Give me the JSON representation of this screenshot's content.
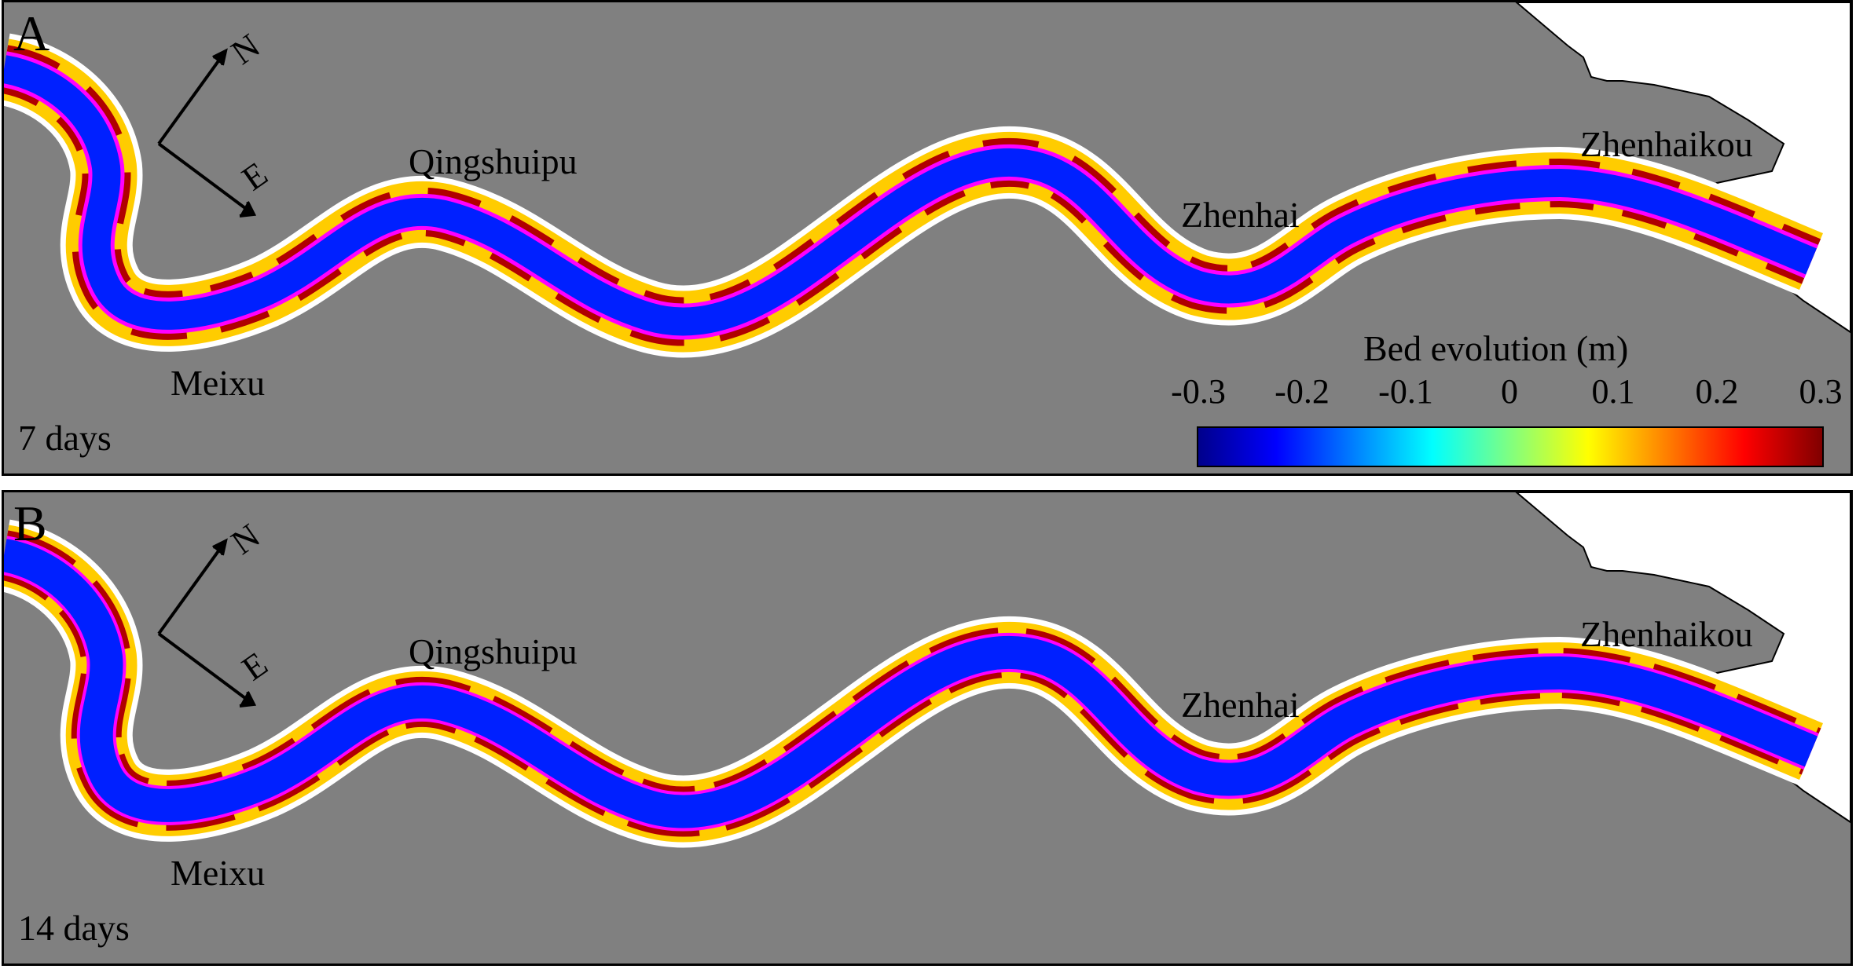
{
  "colors": {
    "land": "#808080",
    "water": "#ffffff",
    "erosion": "#0020ff",
    "deposition": "#8b0000",
    "contour": "#ff00ff"
  },
  "panels": [
    {
      "letter": "A",
      "time_label": "7 days",
      "places": {
        "meixu": "Meixu",
        "qingshuipu": "Qingshuipu",
        "zhenhai": "Zhenhai",
        "zhenhaikou": "Zhenhaikou"
      },
      "north_arrow": {
        "north": "N",
        "east": "E"
      }
    },
    {
      "letter": "B",
      "time_label": "14 days",
      "places": {
        "meixu": "Meixu",
        "qingshuipu": "Qingshuipu",
        "zhenhai": "Zhenhai",
        "zhenhaikou": "Zhenhaikou"
      },
      "north_arrow": {
        "north": "N",
        "east": "E"
      }
    }
  ],
  "colorbar": {
    "title": "Bed evolution (m)",
    "ticks": [
      "-0.3",
      "-0.2",
      "-0.1",
      "0",
      "0.1",
      "0.2",
      "0.3"
    ],
    "min": -0.3,
    "max": 0.3,
    "colormap": [
      "#00008b",
      "#0000ff",
      "#0080ff",
      "#00ffff",
      "#80ff80",
      "#ffff00",
      "#ff8000",
      "#ff0000",
      "#800000"
    ]
  }
}
